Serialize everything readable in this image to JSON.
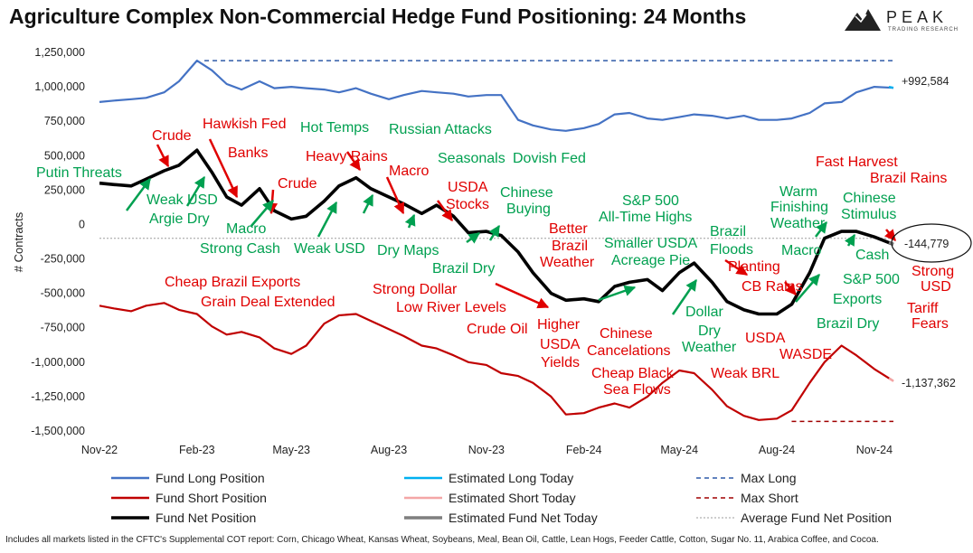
{
  "title": "Agriculture Complex Non-Commercial Hedge Fund Positioning: 24 Months",
  "logo": {
    "word": "PEAK",
    "sub": "TRADING RESEARCH"
  },
  "footnote": "Includes all markets listed in the CFTC's Supplemental COT report: Corn, Chicago Wheat, Kansas Wheat, Soybeans, Meal, Bean Oil, Cattle, Lean Hogs, Feeder Cattle, Cotton, Sugar No. 11, Arabica Coffee, and Cocoa.",
  "colors": {
    "long": "#4472c4",
    "short": "#c00000",
    "net": "#000000",
    "est_long": "#00b0f0",
    "est_short": "#f4a6a6",
    "est_net": "#7f7f7f",
    "avg": "#9e9e9e",
    "green": "#00a050",
    "red": "#e00000"
  },
  "chart_data": {
    "type": "line",
    "ylabel": "# Contracts",
    "ylim": [
      -1500000,
      1250000
    ],
    "yticks": [
      1250000,
      1000000,
      750000,
      500000,
      250000,
      0,
      -250000,
      -500000,
      -750000,
      -1000000,
      -1250000,
      -1500000
    ],
    "ytick_labels": [
      "1,250,000",
      "1,000,000",
      "750,000",
      "500,000",
      "250,000",
      "0",
      "-250,000",
      "-500,000",
      "-750,000",
      "-1,000,000",
      "-1,250,000",
      "-1,500,000"
    ],
    "x_range": [
      "2022-11-01",
      "2024-11-19"
    ],
    "xticks": [
      "2022-11-01",
      "2023-02-01",
      "2023-05-01",
      "2023-08-01",
      "2023-11-01",
      "2024-02-01",
      "2024-05-01",
      "2024-08-01",
      "2024-11-01"
    ],
    "xtick_labels": [
      "Nov-22",
      "Feb-23",
      "May-23",
      "Aug-23",
      "Nov-23",
      "Feb-24",
      "May-24",
      "Aug-24",
      "Nov-24"
    ],
    "x": [
      "2022-11-01",
      "2022-11-15",
      "2022-12-01",
      "2022-12-15",
      "2023-01-01",
      "2023-01-15",
      "2023-02-01",
      "2023-02-15",
      "2023-03-01",
      "2023-03-15",
      "2023-04-01",
      "2023-04-15",
      "2023-05-01",
      "2023-05-15",
      "2023-06-01",
      "2023-06-15",
      "2023-07-01",
      "2023-07-15",
      "2023-08-01",
      "2023-08-15",
      "2023-09-01",
      "2023-09-15",
      "2023-10-01",
      "2023-10-15",
      "2023-11-01",
      "2023-11-15",
      "2023-12-01",
      "2023-12-15",
      "2024-01-01",
      "2024-01-15",
      "2024-02-01",
      "2024-02-15",
      "2024-03-01",
      "2024-03-15",
      "2024-04-01",
      "2024-04-15",
      "2024-05-01",
      "2024-05-15",
      "2024-06-01",
      "2024-06-15",
      "2024-07-01",
      "2024-07-15",
      "2024-08-01",
      "2024-08-15",
      "2024-09-01",
      "2024-09-15",
      "2024-10-01",
      "2024-10-15",
      "2024-11-01",
      "2024-11-19"
    ],
    "series": [
      {
        "name": "Fund Long Position",
        "values": [
          890000,
          900000,
          910000,
          920000,
          960000,
          1040000,
          1190000,
          1120000,
          1020000,
          980000,
          1040000,
          990000,
          1000000,
          990000,
          980000,
          960000,
          990000,
          950000,
          910000,
          940000,
          970000,
          960000,
          950000,
          930000,
          940000,
          940000,
          760000,
          720000,
          690000,
          680000,
          700000,
          730000,
          800000,
          810000,
          770000,
          760000,
          780000,
          800000,
          790000,
          770000,
          790000,
          760000,
          760000,
          770000,
          810000,
          880000,
          890000,
          960000,
          1000000,
          992584
        ]
      },
      {
        "name": "Fund Short Position",
        "values": [
          -590000,
          -610000,
          -630000,
          -590000,
          -570000,
          -620000,
          -650000,
          -740000,
          -800000,
          -780000,
          -820000,
          -900000,
          -940000,
          -880000,
          -720000,
          -660000,
          -650000,
          -700000,
          -760000,
          -810000,
          -880000,
          -900000,
          -950000,
          -1000000,
          -1020000,
          -1080000,
          -1100000,
          -1150000,
          -1250000,
          -1380000,
          -1370000,
          -1330000,
          -1300000,
          -1330000,
          -1250000,
          -1150000,
          -1060000,
          -1080000,
          -1200000,
          -1320000,
          -1390000,
          -1420000,
          -1410000,
          -1350000,
          -1150000,
          -1000000,
          -880000,
          -950000,
          -1050000,
          -1137362
        ]
      },
      {
        "name": "Fund Net Position",
        "values": [
          300000,
          290000,
          280000,
          330000,
          390000,
          430000,
          540000,
          380000,
          200000,
          140000,
          260000,
          100000,
          40000,
          60000,
          170000,
          280000,
          340000,
          260000,
          200000,
          150000,
          80000,
          140000,
          60000,
          -60000,
          -50000,
          -80000,
          -200000,
          -350000,
          -500000,
          -550000,
          -540000,
          -560000,
          -450000,
          -420000,
          -400000,
          -480000,
          -350000,
          -280000,
          -420000,
          -560000,
          -620000,
          -650000,
          -650000,
          -580000,
          -350000,
          -100000,
          -50000,
          -50000,
          -90000,
          -144779
        ]
      }
    ],
    "max_long": 1190000,
    "max_short": -1430000,
    "average_net": -100000,
    "end_labels": [
      "+992,584",
      "-144,779",
      "-1,137,362"
    ],
    "legend": [
      [
        "Fund Long Position",
        "Estimated Long Today",
        "Max Long"
      ],
      [
        "Fund Short Position",
        "Estimated Short Today",
        "Max Short"
      ],
      [
        "Fund Net Position",
        "Estimated Fund Net Today",
        "Average Fund Net Position"
      ]
    ],
    "legend_placement": "bottom",
    "annotations": [
      {
        "text": "Crude",
        "color": "red"
      },
      {
        "text": "Hawkish Fed",
        "color": "red"
      },
      {
        "text": "Banks",
        "color": "red"
      },
      {
        "text": "Putin Threats",
        "color": "green"
      },
      {
        "text": "Weak USD",
        "color": "green"
      },
      {
        "text": "Argie Dry",
        "color": "green"
      },
      {
        "text": "Hot Temps",
        "color": "green"
      },
      {
        "text": "Russian Attacks",
        "color": "green"
      },
      {
        "text": "Heavy Rains",
        "color": "red"
      },
      {
        "text": "Macro",
        "color": "red"
      },
      {
        "text": "Crude",
        "color": "red"
      },
      {
        "text": "Macro",
        "color": "green"
      },
      {
        "text": "Strong Cash",
        "color": "green"
      },
      {
        "text": "Weak USD",
        "color": "green"
      },
      {
        "text": "Dry Maps",
        "color": "green"
      },
      {
        "text": "Seasonals",
        "color": "green"
      },
      {
        "text": "Dovish Fed",
        "color": "green"
      },
      {
        "text": "USDA",
        "color": "red"
      },
      {
        "text": "Stocks",
        "color": "red"
      },
      {
        "text": "Chinese",
        "color": "green"
      },
      {
        "text": "Buying",
        "color": "green"
      },
      {
        "text": "Brazil Dry",
        "color": "green"
      },
      {
        "text": "Better",
        "color": "red"
      },
      {
        "text": "Brazil",
        "color": "red"
      },
      {
        "text": "Weather",
        "color": "red"
      },
      {
        "text": "S&P 500",
        "color": "green"
      },
      {
        "text": "All-Time Highs",
        "color": "green"
      },
      {
        "text": "Smaller USDA",
        "color": "green"
      },
      {
        "text": "Acreage Pie",
        "color": "green"
      },
      {
        "text": "Brazil",
        "color": "green"
      },
      {
        "text": "Floods",
        "color": "green"
      },
      {
        "text": "Warm",
        "color": "green"
      },
      {
        "text": "Finishing",
        "color": "green"
      },
      {
        "text": "Weather",
        "color": "green"
      },
      {
        "text": "Chinese",
        "color": "green"
      },
      {
        "text": "Stimulus",
        "color": "green"
      },
      {
        "text": "Fast Harvest",
        "color": "red"
      },
      {
        "text": "Brazil Rains",
        "color": "red"
      },
      {
        "text": "Macro",
        "color": "green"
      },
      {
        "text": "Cash",
        "color": "green"
      },
      {
        "text": "Planting",
        "color": "red"
      },
      {
        "text": "CB Rains",
        "color": "red"
      },
      {
        "text": "S&P 500",
        "color": "green"
      },
      {
        "text": "Exports",
        "color": "green"
      },
      {
        "text": "Strong",
        "color": "red"
      },
      {
        "text": "USD",
        "color": "red"
      },
      {
        "text": "Tariff",
        "color": "red"
      },
      {
        "text": "Fears",
        "color": "red"
      },
      {
        "text": "Cheap Brazil Exports",
        "color": "red"
      },
      {
        "text": "Grain Deal Extended",
        "color": "red"
      },
      {
        "text": "Strong Dollar",
        "color": "red"
      },
      {
        "text": "Low River Levels",
        "color": "red"
      },
      {
        "text": "Crude Oil",
        "color": "red"
      },
      {
        "text": "Higher",
        "color": "red"
      },
      {
        "text": "USDA",
        "color": "red"
      },
      {
        "text": "Yields",
        "color": "red"
      },
      {
        "text": "Chinese",
        "color": "red"
      },
      {
        "text": "Cancelations",
        "color": "red"
      },
      {
        "text": "Dollar",
        "color": "green"
      },
      {
        "text": "Dry",
        "color": "green"
      },
      {
        "text": "Weather",
        "color": "green"
      },
      {
        "text": "USDA",
        "color": "red"
      },
      {
        "text": "Brazil Dry",
        "color": "green"
      },
      {
        "text": "Cheap Black",
        "color": "red"
      },
      {
        "text": "Sea Flows",
        "color": "red"
      },
      {
        "text": "Weak BRL",
        "color": "red"
      },
      {
        "text": "WASDE",
        "color": "red"
      }
    ]
  }
}
